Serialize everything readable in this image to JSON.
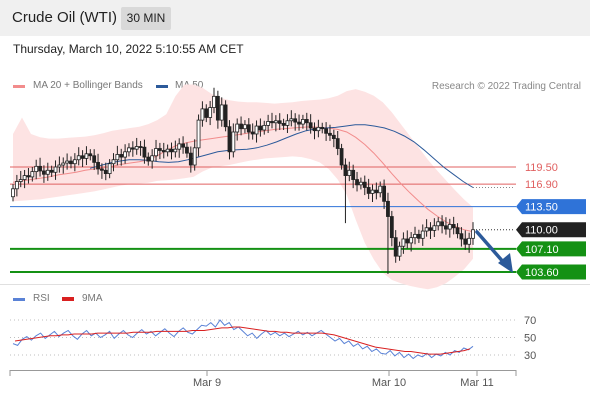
{
  "header": {
    "title": "Crude Oil (WTI)",
    "timeframe": "30 MIN"
  },
  "datetime": "Thursday, March 10, 2022 5:10:55 AM CET",
  "legend": {
    "ma20": "MA 20 + Bollinger Bands",
    "ma50": "MA 50",
    "credit": "Research © 2022 Trading Central",
    "rsi": "RSI",
    "rsi_ma": "9MA"
  },
  "colors": {
    "ma20": "#f28c8c",
    "ma50": "#2c5a9a",
    "bollinger_fill": "#fde3e3",
    "resistance": "#e06060",
    "pivot": "#2f73d8",
    "support": "#149114",
    "current": "#222222",
    "rsi": "#5a82d6",
    "rsi_ma": "#d92020",
    "arrow": "#2c5a9a",
    "candle_up": "#ffffff",
    "candle_down": "#222222"
  },
  "chart_data": [
    {
      "type": "candlestick",
      "title": "Crude Oil (WTI)",
      "ylim": [
        97,
        134
      ],
      "x_ticks": [
        "Mar 9",
        "Mar 10",
        "Mar 11"
      ],
      "current_price": "110.00",
      "levels": [
        {
          "label": "119.50",
          "value": 119.5,
          "kind": "resistance"
        },
        {
          "label": "116.90",
          "value": 116.9,
          "kind": "resistance"
        },
        {
          "label": "113.50",
          "value": 113.5,
          "kind": "pivot"
        },
        {
          "label": "107.10",
          "value": 107.1,
          "kind": "support"
        },
        {
          "label": "103.60",
          "value": 103.6,
          "kind": "support"
        }
      ],
      "closes": [
        116.2,
        117.3,
        117.6,
        118.2,
        118.0,
        118.8,
        119.6,
        118.9,
        118.4,
        119.0,
        118.7,
        119.5,
        119.8,
        120.1,
        120.4,
        120.0,
        120.6,
        121.2,
        120.8,
        121.5,
        121.2,
        120.2,
        119.2,
        119.0,
        118.5,
        120.0,
        120.6,
        121.4,
        121.0,
        121.8,
        122.4,
        122.2,
        122.6,
        122.5,
        121.0,
        120.4,
        121.2,
        122.3,
        122.0,
        121.8,
        122.2,
        121.8,
        122.2,
        123.0,
        122.5,
        121.6,
        119.8,
        122.4,
        126.6,
        128.3,
        127.0,
        128.5,
        130.2,
        126.6,
        128.9,
        125.6,
        121.8,
        124.8,
        126.0,
        125.3,
        125.9,
        124.8,
        124.5,
        125.7,
        125.1,
        125.8,
        126.4,
        126.2,
        126.5,
        126.1,
        125.8,
        126.5,
        126.8,
        126.3,
        126.0,
        126.7,
        126.2,
        125.4,
        125.0,
        125.5,
        125.3,
        124.6,
        124.3,
        123.8,
        122.3,
        119.8,
        118.2,
        119.0,
        117.6,
        116.8,
        117.2,
        116.4,
        115.5,
        116.0,
        115.6,
        116.6,
        114.3,
        112.0,
        108.8,
        106.0,
        107.5,
        108.6,
        108.0,
        108.8,
        109.3,
        108.7,
        109.8,
        110.3,
        109.9,
        110.6,
        111.2,
        110.6,
        110.1,
        110.8,
        110.3,
        109.4,
        108.6,
        107.8,
        108.7,
        110.0
      ],
      "ma50": [
        119.3,
        119.7,
        120.1,
        120.4,
        120.6,
        120.6,
        120.5,
        120.3,
        120.2,
        120.3,
        120.6,
        121.0,
        121.4,
        121.8,
        122.0,
        122.1,
        122.2,
        122.4,
        122.8,
        123.3,
        123.9,
        124.5,
        125.0,
        125.3,
        125.4,
        125.5,
        125.7,
        125.9,
        125.9,
        125.7,
        125.4,
        124.9,
        124.2,
        123.3,
        122.1,
        120.8,
        119.5,
        118.4,
        117.3,
        116.4
      ],
      "upper_band": [
        124.5,
        127.0,
        124.5,
        124.0,
        123.8,
        123.8,
        123.9,
        124.0,
        124.1,
        124.3,
        124.6,
        125.0,
        125.2,
        125.4,
        125.6,
        126.0,
        126.6,
        127.5,
        130.2,
        132.0,
        132.0,
        131.5,
        130.6,
        130.0,
        129.6,
        129.4,
        129.3,
        129.3,
        129.2,
        129.1,
        129.2,
        129.3,
        129.5,
        129.6,
        129.7,
        129.9,
        130.3,
        131.0,
        131.3,
        130.9,
        130.3,
        129.3,
        127.8,
        126.0,
        124.2,
        122.4,
        120.6,
        119.0,
        117.5,
        116.0,
        114.6,
        113.4
      ],
      "lower_band": [
        114.3,
        114.4,
        114.5,
        114.6,
        114.8,
        115.0,
        115.2,
        115.4,
        115.6,
        115.8,
        116.1,
        116.4,
        116.7,
        116.9,
        117.0,
        117.1,
        117.4,
        117.5,
        117.6,
        117.8,
        118.0,
        118.8,
        119.4,
        119.6,
        119.8,
        120.1,
        120.4,
        120.6,
        120.8,
        120.9,
        121.0,
        121.1,
        121.0,
        120.7,
        120.2,
        119.2,
        117.6,
        115.3,
        111.5,
        108.0,
        105.5,
        103.5,
        102.4,
        101.9,
        101.5,
        101.2,
        101.0,
        101.3,
        101.9,
        102.9,
        104.0,
        105.6
      ],
      "ma20_mid": [
        117.2,
        117.4,
        117.6,
        117.8,
        118.0,
        118.3,
        118.5,
        118.7,
        119.0,
        119.2,
        119.4,
        119.6,
        119.9,
        120.1,
        120.3,
        120.6,
        121.2,
        122.0,
        122.7,
        123.1,
        123.4,
        123.6,
        123.8,
        124.0,
        124.2,
        124.4,
        124.6,
        124.8,
        125.0,
        125.2,
        125.3,
        125.4,
        125.5,
        125.6,
        125.5,
        125.4,
        125.2,
        124.8,
        124.0,
        122.9,
        121.6,
        120.1,
        118.5,
        117.0,
        115.6,
        114.3,
        113.1,
        112.1,
        111.2,
        110.5,
        110.0,
        109.7
      ]
    },
    {
      "type": "line",
      "title": "RSI",
      "ylim": [
        10,
        82
      ],
      "y_ticks": [
        70,
        50,
        30
      ],
      "series": [
        {
          "name": "RSI",
          "values": [
            43,
            41,
            48,
            51,
            47,
            52,
            55,
            49,
            53,
            57,
            51,
            55,
            58,
            52,
            48,
            54,
            58,
            52,
            55,
            50,
            53,
            57,
            49,
            54,
            58,
            53,
            50,
            55,
            59,
            54,
            57,
            52,
            56,
            60,
            55,
            51,
            57,
            61,
            56,
            54,
            59,
            64,
            63,
            67,
            62,
            70,
            64,
            67,
            59,
            62,
            57,
            52,
            55,
            49,
            54,
            58,
            53,
            56,
            52,
            55,
            51,
            54,
            57,
            53,
            56,
            52,
            55,
            58,
            54,
            50,
            46,
            49,
            43,
            46,
            40,
            43,
            37,
            40,
            34,
            37,
            32,
            31,
            35,
            29,
            33,
            27,
            31,
            26,
            30,
            28,
            32,
            27,
            31,
            29,
            33,
            30,
            35,
            33,
            38,
            36,
            40
          ]
        },
        {
          "name": "9MA",
          "values": [
            46,
            47,
            48,
            49,
            50,
            51,
            52,
            52,
            53,
            53,
            54,
            54,
            54,
            54,
            55,
            55,
            55,
            55,
            55,
            55,
            56,
            56,
            56,
            56,
            57,
            57,
            57,
            57,
            57,
            57,
            58,
            58,
            58,
            59,
            60,
            61,
            61,
            62,
            62,
            61,
            60,
            59,
            58,
            57,
            57,
            56,
            56,
            55,
            55,
            55,
            55,
            55,
            55,
            54,
            53,
            51,
            49,
            47,
            45,
            43,
            41,
            39,
            38,
            37,
            36,
            35,
            34,
            34,
            33,
            32,
            31,
            31,
            31,
            32,
            33,
            34,
            35,
            37
          ]
        }
      ]
    }
  ]
}
